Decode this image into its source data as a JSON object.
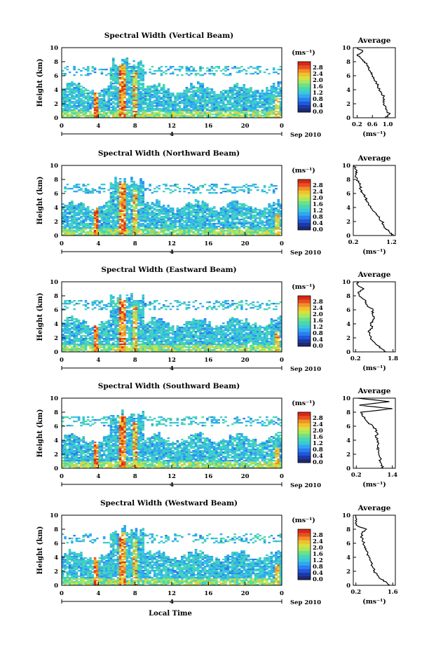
{
  "figure": {
    "xlabel": "Local Time",
    "date_label": "Sep 2010",
    "avg_title": "Average"
  },
  "chart_data": [
    {
      "type": "heatmap",
      "title": "Spectral Width (Vertical Beam)",
      "ylabel": "Height (km)",
      "xlabel": "Local Time",
      "x_ticks": [
        "0",
        "4",
        "8",
        "12",
        "16",
        "20",
        "0"
      ],
      "x_date_tick": "4",
      "y_ticks": [
        "0",
        "2",
        "4",
        "6",
        "8",
        "10"
      ],
      "xlim": [
        0,
        24
      ],
      "ylim": [
        0,
        10
      ],
      "colorbar": {
        "unit_label": "(ms⁻¹)",
        "ticks": [
          "0.0",
          "0.4",
          "0.8",
          "1.2",
          "1.6",
          "2.0",
          "2.4",
          "2.8"
        ],
        "range": [
          0,
          3.0
        ]
      },
      "average_profile": {
        "title": "Average",
        "xlabel": "(ms⁻¹)",
        "x_ticks": [
          "0.2",
          "0.6",
          "1.0"
        ],
        "xlim": [
          0.1,
          1.2
        ],
        "ylim": [
          0,
          10
        ],
        "points": [
          [
            0.93,
            0
          ],
          [
            1.05,
            0.5
          ],
          [
            0.98,
            1
          ],
          [
            0.95,
            1.5
          ],
          [
            0.9,
            2
          ],
          [
            0.88,
            2.5
          ],
          [
            0.9,
            3
          ],
          [
            0.85,
            3.5
          ],
          [
            0.78,
            4
          ],
          [
            0.75,
            4.5
          ],
          [
            0.7,
            5
          ],
          [
            0.65,
            5.5
          ],
          [
            0.6,
            6
          ],
          [
            0.55,
            6.5
          ],
          [
            0.5,
            7
          ],
          [
            0.45,
            7.5
          ],
          [
            0.4,
            8
          ],
          [
            0.3,
            8.5
          ],
          [
            0.2,
            9
          ],
          [
            0.35,
            9.5
          ],
          [
            0.2,
            10
          ]
        ]
      }
    },
    {
      "type": "heatmap",
      "title": "Spectral Width (Northward Beam)",
      "ylabel": "Height (km)",
      "xlabel": "Local Time",
      "x_ticks": [
        "0",
        "4",
        "8",
        "12",
        "16",
        "20",
        "0"
      ],
      "x_date_tick": "4",
      "y_ticks": [
        "0",
        "2",
        "4",
        "6",
        "8",
        "10"
      ],
      "xlim": [
        0,
        24
      ],
      "ylim": [
        0,
        10
      ],
      "colorbar": {
        "unit_label": "(ms⁻¹)",
        "ticks": [
          "0.0",
          "0.4",
          "0.8",
          "1.2",
          "1.6",
          "2.0",
          "2.4",
          "2.8"
        ],
        "range": [
          0,
          3.0
        ]
      },
      "average_profile": {
        "title": "Average",
        "xlabel": "(ms⁻¹)",
        "x_ticks": [
          "0.2",
          "1.2"
        ],
        "xlim": [
          0.2,
          1.3
        ],
        "ylim": [
          0,
          10
        ],
        "points": [
          [
            1.25,
            0
          ],
          [
            1.15,
            0.5
          ],
          [
            1.05,
            1
          ],
          [
            1.0,
            1.5
          ],
          [
            0.95,
            2
          ],
          [
            0.88,
            2.5
          ],
          [
            0.8,
            3
          ],
          [
            0.72,
            3.5
          ],
          [
            0.65,
            4
          ],
          [
            0.6,
            4.5
          ],
          [
            0.55,
            5
          ],
          [
            0.5,
            5.5
          ],
          [
            0.45,
            6
          ],
          [
            0.4,
            6.5
          ],
          [
            0.38,
            7
          ],
          [
            0.35,
            7.5
          ],
          [
            0.3,
            8
          ],
          [
            0.25,
            8.5
          ],
          [
            0.3,
            9
          ],
          [
            0.25,
            9.5
          ],
          [
            0.22,
            10
          ]
        ]
      }
    },
    {
      "type": "heatmap",
      "title": "Spectral Width (Eastward Beam)",
      "ylabel": "Height (km)",
      "xlabel": "Local Time",
      "x_ticks": [
        "0",
        "4",
        "8",
        "12",
        "16",
        "20",
        "0"
      ],
      "x_date_tick": "4",
      "y_ticks": [
        "0",
        "2",
        "4",
        "6",
        "8",
        "10"
      ],
      "xlim": [
        0,
        24
      ],
      "ylim": [
        0,
        10
      ],
      "colorbar": {
        "unit_label": "(ms⁻¹)",
        "ticks": [
          "0.0",
          "0.4",
          "0.8",
          "1.2",
          "1.6",
          "2.0",
          "2.4",
          "2.8"
        ],
        "range": [
          0,
          3.0
        ]
      },
      "average_profile": {
        "title": "Average",
        "xlabel": "(ms⁻¹)",
        "x_ticks": [
          "0.2",
          "1.8"
        ],
        "xlim": [
          0.1,
          1.9
        ],
        "ylim": [
          0,
          10
        ],
        "points": [
          [
            1.5,
            0
          ],
          [
            1.3,
            0.5
          ],
          [
            1.1,
            1
          ],
          [
            0.95,
            1.5
          ],
          [
            0.85,
            2
          ],
          [
            0.8,
            2.5
          ],
          [
            0.75,
            3
          ],
          [
            0.9,
            3.5
          ],
          [
            0.85,
            4
          ],
          [
            0.95,
            4.5
          ],
          [
            1.0,
            5
          ],
          [
            0.9,
            5.5
          ],
          [
            0.95,
            6
          ],
          [
            0.7,
            6.5
          ],
          [
            0.65,
            7
          ],
          [
            0.55,
            7.5
          ],
          [
            0.35,
            8
          ],
          [
            0.3,
            8.5
          ],
          [
            0.55,
            9
          ],
          [
            0.3,
            9.5
          ],
          [
            0.25,
            10
          ]
        ]
      }
    },
    {
      "type": "heatmap",
      "title": "Spectral Width (Southward Beam)",
      "ylabel": "Height (km)",
      "xlabel": "Local Time",
      "x_ticks": [
        "0",
        "4",
        "8",
        "12",
        "16",
        "20",
        "0"
      ],
      "x_date_tick": "4",
      "y_ticks": [
        "0",
        "2",
        "4",
        "6",
        "8",
        "10"
      ],
      "xlim": [
        0,
        24
      ],
      "ylim": [
        0,
        10
      ],
      "colorbar": {
        "unit_label": "(ms⁻¹)",
        "ticks": [
          "0.0",
          "0.4",
          "0.8",
          "1.2",
          "1.6",
          "2.0",
          "2.4",
          "2.8"
        ],
        "range": [
          0,
          3.0
        ]
      },
      "average_profile": {
        "title": "Average",
        "xlabel": "(ms⁻¹)",
        "x_ticks": [
          "0.2",
          "1.4"
        ],
        "xlim": [
          0.1,
          1.5
        ],
        "ylim": [
          0,
          10
        ],
        "points": [
          [
            1.1,
            0
          ],
          [
            1.05,
            0.5
          ],
          [
            1.0,
            1
          ],
          [
            1.0,
            1.5
          ],
          [
            0.95,
            2
          ],
          [
            0.95,
            2.5
          ],
          [
            0.9,
            3
          ],
          [
            0.95,
            3.5
          ],
          [
            0.9,
            4
          ],
          [
            0.85,
            4.5
          ],
          [
            0.9,
            5
          ],
          [
            0.85,
            5.5
          ],
          [
            0.75,
            6
          ],
          [
            0.6,
            6.5
          ],
          [
            0.5,
            7
          ],
          [
            0.4,
            7.5
          ],
          [
            0.35,
            8
          ],
          [
            1.4,
            8.5
          ],
          [
            0.3,
            9
          ],
          [
            1.3,
            9.5
          ],
          [
            0.25,
            10
          ]
        ]
      }
    },
    {
      "type": "heatmap",
      "title": "Spectral Width (Westward Beam)",
      "ylabel": "Height (km)",
      "xlabel": "Local Time",
      "x_ticks": [
        "0",
        "4",
        "8",
        "12",
        "16",
        "20",
        "0"
      ],
      "x_date_tick": "4",
      "y_ticks": [
        "0",
        "2",
        "4",
        "6",
        "8",
        "10"
      ],
      "xlim": [
        0,
        24
      ],
      "ylim": [
        0,
        10
      ],
      "colorbar": {
        "unit_label": "(ms⁻¹)",
        "ticks": [
          "0.0",
          "0.4",
          "0.8",
          "1.2",
          "1.6",
          "2.0",
          "2.4",
          "2.8"
        ],
        "range": [
          0,
          3.0
        ]
      },
      "average_profile": {
        "title": "Average",
        "xlabel": "(ms⁻¹)",
        "x_ticks": [
          "0.2",
          "1.6"
        ],
        "xlim": [
          0.1,
          1.7
        ],
        "ylim": [
          0,
          10
        ],
        "points": [
          [
            1.5,
            0
          ],
          [
            1.35,
            0.5
          ],
          [
            1.1,
            1
          ],
          [
            1.0,
            1.5
          ],
          [
            0.9,
            2
          ],
          [
            0.85,
            2.5
          ],
          [
            0.8,
            3
          ],
          [
            0.75,
            3.5
          ],
          [
            0.7,
            4
          ],
          [
            0.65,
            4.5
          ],
          [
            0.6,
            5
          ],
          [
            0.55,
            5.5
          ],
          [
            0.5,
            6
          ],
          [
            0.45,
            6.5
          ],
          [
            0.4,
            7
          ],
          [
            0.45,
            7.5
          ],
          [
            0.6,
            8
          ],
          [
            0.25,
            8.5
          ],
          [
            0.2,
            9
          ],
          [
            0.22,
            9.5
          ],
          [
            0.2,
            10
          ]
        ]
      }
    }
  ]
}
